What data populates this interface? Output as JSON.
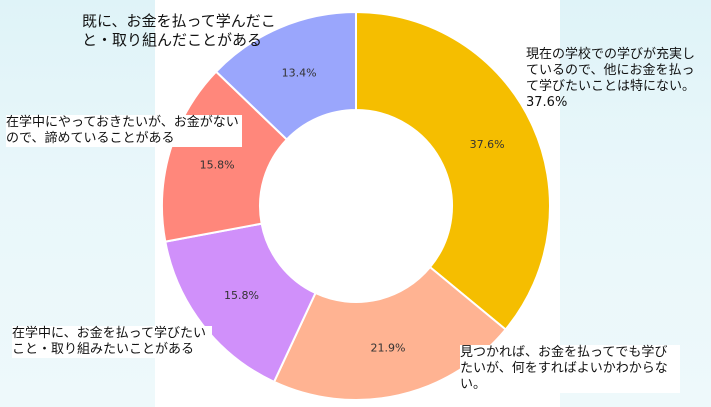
{
  "chart_data": {
    "type": "pie",
    "donut": true,
    "title": "",
    "slices": [
      {
        "label": "現在の学校での学びが充実しているので、他にお金を払って学びたいことは特にない。37.6%",
        "value": 37.6,
        "value_label": "37.6%",
        "color": "#F5BE00"
      },
      {
        "label": "見つかれば、お金を払ってでも学びたいが、何をすればよいかわからない。",
        "value": 21.9,
        "value_label": "21.9%",
        "color": "#FFB392"
      },
      {
        "label": "在学中に、お金を払って学びたいこと・取り組みたいことがある",
        "value": 15.8,
        "value_label": "15.8%",
        "color": "#D090FA"
      },
      {
        "label": "在学中にやっておきたいが、お金がないので、諦めていることがある",
        "value": 15.8,
        "value_label": "15.8%",
        "color": "#FF877B"
      },
      {
        "label": "既に、お金を払って学んだこと・取り組んだことがある",
        "value": 13.4,
        "value_label": "13.4%",
        "color": "#9AA6FC"
      }
    ],
    "start_angle_deg": 0,
    "direction": "clockwise"
  }
}
